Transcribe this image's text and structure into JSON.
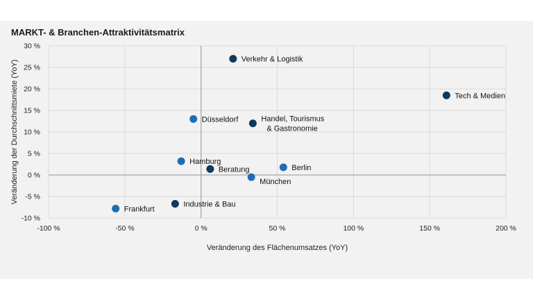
{
  "chart_data": {
    "type": "scatter",
    "title": "MARKT- & Branchen-Attraktivitätsmatrix",
    "xlabel": "Veränderung des Flächenumsatzes (YoY)",
    "ylabel": "Veränderung der Durchschnittsmiete (YoY)",
    "xlim": [
      -100,
      200
    ],
    "ylim": [
      -10,
      30
    ],
    "xticks": [
      -100,
      -50,
      0,
      50,
      100,
      150,
      200
    ],
    "yticks": [
      -10,
      -5,
      0,
      5,
      10,
      15,
      20,
      25,
      30
    ],
    "xtick_labels": [
      "-100 %",
      "-50 %",
      "0 %",
      "50 %",
      "100 %",
      "150 %",
      "200 %"
    ],
    "ytick_labels": [
      "-10 %",
      "-5 %",
      "0 %",
      "5 %",
      "10 %",
      "15 %",
      "20 %",
      "25 %",
      "30 %"
    ],
    "grid": true,
    "colors": {
      "markt": "#1f6eb5",
      "branche": "#0d3a5f"
    },
    "points": [
      {
        "label": "Verkehr & Logistik",
        "x": 21,
        "y": 27,
        "group": "branche"
      },
      {
        "label": "Tech & Medien",
        "x": 161,
        "y": 18.5,
        "group": "branche"
      },
      {
        "label": "Düsseldorf",
        "x": -5,
        "y": 13,
        "group": "markt"
      },
      {
        "label": "Handel, Tourismus & Gastronomie",
        "x": 34,
        "y": 12,
        "group": "branche"
      },
      {
        "label": "Hamburg",
        "x": -13,
        "y": 3.2,
        "group": "markt"
      },
      {
        "label": "Beratung",
        "x": 6,
        "y": 1.4,
        "group": "branche"
      },
      {
        "label": "Berlin",
        "x": 54,
        "y": 1.8,
        "group": "markt"
      },
      {
        "label": "München",
        "x": 33,
        "y": -0.5,
        "group": "markt"
      },
      {
        "label": "Industrie & Bau",
        "x": -17,
        "y": -6.7,
        "group": "branche"
      },
      {
        "label": "Frankfurt",
        "x": -56,
        "y": -7.8,
        "group": "markt"
      }
    ]
  }
}
